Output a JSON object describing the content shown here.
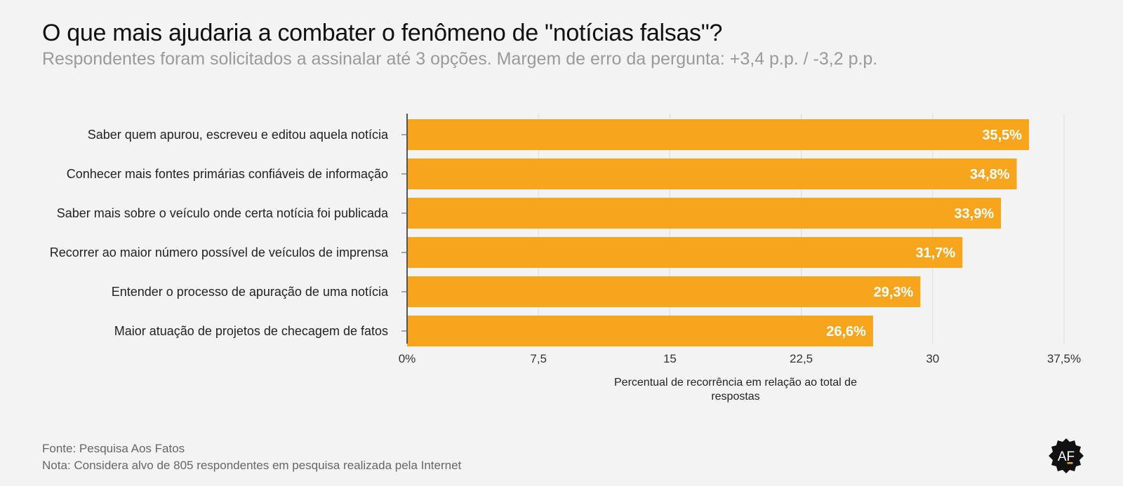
{
  "header": {
    "title": "O que mais ajudaria a combater o fenômeno de \"notícias falsas\"?",
    "subtitle": "Respondentes foram solicitados a assinalar até 3 opções. Margem de erro da pergunta: +3,4 p.p. / -3,2 p.p."
  },
  "chart_data": {
    "type": "bar",
    "orientation": "horizontal",
    "categories": [
      "Saber quem apurou, escreveu e editou aquela notícia",
      "Conhecer mais fontes primárias confiáveis de informação",
      "Saber mais sobre o veículo onde certa notícia foi publicada",
      "Recorrer ao maior número possível de veículos de imprensa",
      "Entender o processo de apuração de uma notícia",
      "Maior atuação de projetos de checagem de fatos"
    ],
    "values": [
      35.5,
      34.8,
      33.9,
      31.7,
      29.3,
      26.6
    ],
    "value_labels": [
      "35,5%",
      "34,8%",
      "33,9%",
      "31,7%",
      "29,3%",
      "26,6%"
    ],
    "xlim": [
      0,
      37.5
    ],
    "x_ticks": [
      0,
      7.5,
      15,
      22.5,
      30,
      37.5
    ],
    "x_tick_labels": [
      "0%",
      "7,5",
      "15",
      "22,5",
      "30",
      "37,5%"
    ],
    "xlabel_lines": [
      "Percentual de recorrência em relação ao total de",
      "respostas"
    ],
    "grid": true,
    "bar_color": "#f7a51c",
    "label_color": "#ffffff"
  },
  "footer": {
    "source": "Fonte: Pesquisa Aos Fatos",
    "note": "Nota: Considera alvo de 805 respondentes em pesquisa realizada pela Internet"
  },
  "logo": {
    "text": "AF",
    "icon": "aos-fatos-logo-icon"
  }
}
